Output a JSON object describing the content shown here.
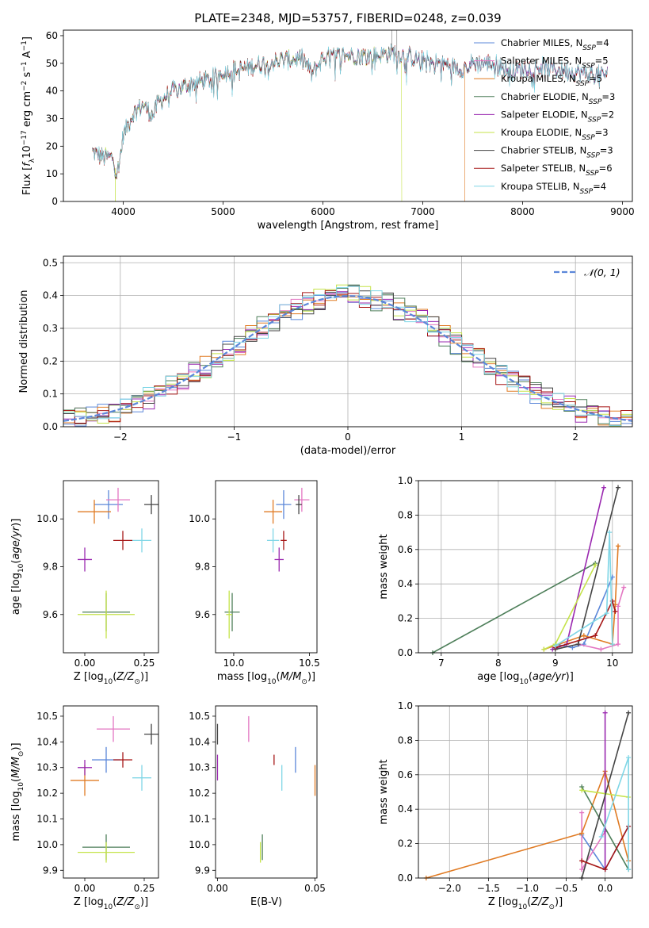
{
  "title": "PLATE=2348, MJD=53757, FIBERID=0248, z=0.039",
  "colors": {
    "Chabrier MILES": "#5b87d9",
    "Salpeter MILES": "#e377c2",
    "Kroupa MILES": "#e07b24",
    "Chabrier ELODIE": "#4e7f5a",
    "Salpeter ELODIE": "#9a28b0",
    "Kroupa ELODIE": "#c5e34a",
    "Chabrier STELIB": "#444444",
    "Salpeter STELIB": "#a61616",
    "Kroupa STELIB": "#7fd6e6",
    "normal": "#5b87d9"
  },
  "models": [
    "Chabrier MILES",
    "Salpeter MILES",
    "Kroupa MILES",
    "Chabrier ELODIE",
    "Salpeter ELODIE",
    "Kroupa ELODIE",
    "Chabrier STELIB",
    "Salpeter STELIB",
    "Kroupa STELIB"
  ],
  "chart_data": [
    {
      "id": "spectrum",
      "type": "line",
      "title": "PLATE=2348, MJD=53757, FIBERID=0248, z=0.039",
      "xlabel": "wavelength [Angstrom, rest frame]",
      "ylabel_parts": [
        "Flux [",
        "f",
        "λ",
        "10",
        "−17",
        " erg cm",
        "−2",
        " s",
        "−1",
        " A",
        "−1",
        "]"
      ],
      "xlim": [
        3400,
        9100
      ],
      "ylim": [
        0,
        62
      ],
      "xticks": [
        4000,
        5000,
        6000,
        7000,
        8000,
        9000
      ],
      "yticks": [
        0,
        10,
        20,
        30,
        40,
        50,
        60
      ],
      "legend": [
        {
          "name": "Chabrier MILES",
          "nssp": "4"
        },
        {
          "name": "Salpeter MILES",
          "nssp": "5"
        },
        {
          "name": "Kroupa MILES",
          "nssp": "5"
        },
        {
          "name": "Chabrier ELODIE",
          "nssp": "3"
        },
        {
          "name": "Salpeter ELODIE",
          "nssp": "2"
        },
        {
          "name": "Kroupa ELODIE",
          "nssp": "3"
        },
        {
          "name": "Chabrier STELIB",
          "nssp": "3"
        },
        {
          "name": "Salpeter STELIB",
          "nssp": "6"
        },
        {
          "name": "Kroupa STELIB",
          "nssp": "4"
        }
      ],
      "legend_label_prefix": "N",
      "legend_label_sub": "SSP",
      "legend_placement": "top-right",
      "continuum": [
        [
          3690,
          18
        ],
        [
          3800,
          16
        ],
        [
          3900,
          16
        ],
        [
          3930,
          10
        ],
        [
          3960,
          14
        ],
        [
          4000,
          24
        ],
        [
          4100,
          32
        ],
        [
          4200,
          35
        ],
        [
          4300,
          31
        ],
        [
          4350,
          36
        ],
        [
          4500,
          40
        ],
        [
          4700,
          43
        ],
        [
          4860,
          44
        ],
        [
          5000,
          47
        ],
        [
          5200,
          48
        ],
        [
          5400,
          50
        ],
        [
          5600,
          51
        ],
        [
          5800,
          52
        ],
        [
          5890,
          46
        ],
        [
          6000,
          52
        ],
        [
          6200,
          53
        ],
        [
          6400,
          53
        ],
        [
          6563,
          53
        ],
        [
          6700,
          54
        ],
        [
          6900,
          52
        ],
        [
          7000,
          51
        ],
        [
          7200,
          50
        ],
        [
          7400,
          48
        ],
        [
          7500,
          50
        ],
        [
          7700,
          50
        ],
        [
          7900,
          47
        ],
        [
          8100,
          49
        ],
        [
          8300,
          48
        ],
        [
          8500,
          47
        ],
        [
          8700,
          46
        ],
        [
          8850,
          46
        ]
      ],
      "lines": [
        {
          "model": "Kroupa ELODIE",
          "drop_at": 6790
        },
        {
          "model": "Kroupa MILES",
          "drop_at": 7420
        },
        {
          "model": "Kroupa ELODIE",
          "drop_at": 3920,
          "side": "start"
        }
      ]
    },
    {
      "id": "residuals",
      "type": "histogram",
      "xlabel": "(data-model)/error",
      "ylabel": "Normed distribution",
      "xlim": [
        -2.5,
        2.5
      ],
      "ylim": [
        0,
        0.52
      ],
      "xticks": [
        -2,
        -1,
        0,
        1,
        2
      ],
      "yticks": [
        0.0,
        0.1,
        0.2,
        0.3,
        0.4,
        0.5
      ],
      "grid": true,
      "legend": [
        "𝒩(0, 1)"
      ],
      "legend_placement": "top-right",
      "bin_width": 0.1
    },
    {
      "id": "age-vs-Z",
      "type": "scatter",
      "xlabel": "Z [log10(Z/Z⊙)]",
      "ylabel": "age [log10(age/yr)]",
      "xlim": [
        -0.09,
        0.31
      ],
      "ylim": [
        9.44,
        10.16
      ],
      "xticks": [
        0.0,
        0.25
      ],
      "yticks": [
        9.6,
        9.8,
        10.0
      ],
      "points": [
        {
          "model": "Chabrier MILES",
          "x": 0.1,
          "y": 10.06,
          "xerr": 0.06,
          "yerr": 0.06
        },
        {
          "model": "Salpeter MILES",
          "x": 0.14,
          "y": 10.08,
          "xerr": 0.05,
          "yerr": 0.05
        },
        {
          "model": "Kroupa MILES",
          "x": 0.04,
          "y": 10.03,
          "xerr": 0.07,
          "yerr": 0.05
        },
        {
          "model": "Chabrier ELODIE",
          "x": 0.09,
          "y": 9.61,
          "xerr": 0.1,
          "yerr": 0.08
        },
        {
          "model": "Salpeter ELODIE",
          "x": 0.0,
          "y": 9.83,
          "xerr": 0.03,
          "yerr": 0.05
        },
        {
          "model": "Kroupa ELODIE",
          "x": 0.09,
          "y": 9.6,
          "xerr": 0.12,
          "yerr": 0.1
        },
        {
          "model": "Chabrier STELIB",
          "x": 0.28,
          "y": 10.06,
          "xerr": 0.03,
          "yerr": 0.04
        },
        {
          "model": "Salpeter STELIB",
          "x": 0.16,
          "y": 9.91,
          "xerr": 0.04,
          "yerr": 0.04
        },
        {
          "model": "Kroupa STELIB",
          "x": 0.24,
          "y": 9.91,
          "xerr": 0.04,
          "yerr": 0.05
        }
      ]
    },
    {
      "id": "age-vs-mass",
      "type": "scatter",
      "xlabel": "mass [log10(M/M⊙)]",
      "ylabel": "",
      "xlim": [
        9.88,
        10.55
      ],
      "ylim": [
        9.44,
        10.16
      ],
      "xticks": [
        10.0,
        10.5
      ],
      "yticks": [
        9.6,
        9.8,
        10.0
      ],
      "points": [
        {
          "model": "Chabrier MILES",
          "x": 10.33,
          "y": 10.06,
          "xerr": 0.05,
          "yerr": 0.06
        },
        {
          "model": "Salpeter MILES",
          "x": 10.45,
          "y": 10.08,
          "xerr": 0.05,
          "yerr": 0.05
        },
        {
          "model": "Kroupa MILES",
          "x": 10.26,
          "y": 10.03,
          "xerr": 0.06,
          "yerr": 0.05
        },
        {
          "model": "Chabrier ELODIE",
          "x": 9.99,
          "y": 9.61,
          "xerr": 0.05,
          "yerr": 0.08
        },
        {
          "model": "Salpeter ELODIE",
          "x": 10.3,
          "y": 9.83,
          "xerr": 0.03,
          "yerr": 0.05
        },
        {
          "model": "Kroupa ELODIE",
          "x": 9.97,
          "y": 9.6,
          "xerr": 0.02,
          "yerr": 0.1
        },
        {
          "model": "Chabrier STELIB",
          "x": 10.43,
          "y": 10.06,
          "xerr": 0.02,
          "yerr": 0.04
        },
        {
          "model": "Salpeter STELIB",
          "x": 10.33,
          "y": 9.91,
          "xerr": 0.02,
          "yerr": 0.04
        },
        {
          "model": "Kroupa STELIB",
          "x": 10.26,
          "y": 9.91,
          "xerr": 0.04,
          "yerr": 0.05
        }
      ]
    },
    {
      "id": "massweight-vs-age",
      "type": "line",
      "xlabel": "age [log10(age/yr)]",
      "ylabel": "mass weight",
      "xlim": [
        6.6,
        10.35
      ],
      "ylim": [
        0,
        1.0
      ],
      "xticks": [
        7,
        8,
        9,
        10
      ],
      "yticks": [
        0.0,
        0.2,
        0.4,
        0.6,
        0.8,
        1.0
      ],
      "grid": true,
      "series": [
        {
          "model": "Chabrier MILES",
          "points": [
            [
              9.0,
              0.05
            ],
            [
              9.3,
              0.03
            ],
            [
              9.5,
              0.05
            ],
            [
              10.0,
              0.44
            ]
          ]
        },
        {
          "model": "Salpeter MILES",
          "points": [
            [
              9.4,
              0.05
            ],
            [
              9.8,
              0.02
            ],
            [
              10.1,
              0.05
            ],
            [
              10.1,
              0.27
            ],
            [
              10.2,
              0.38
            ]
          ]
        },
        {
          "model": "Kroupa MILES",
          "points": [
            [
              8.8,
              0.02
            ],
            [
              9.5,
              0.1
            ],
            [
              10.0,
              0.05
            ],
            [
              10.05,
              0.28
            ],
            [
              10.1,
              0.62
            ]
          ]
        },
        {
          "model": "Chabrier ELODIE",
          "points": [
            [
              6.85,
              0.0
            ],
            [
              9.7,
              0.52
            ]
          ]
        },
        {
          "model": "Salpeter ELODIE",
          "points": [
            [
              8.95,
              0.02
            ],
            [
              9.2,
              0.05
            ],
            [
              9.85,
              0.96
            ]
          ]
        },
        {
          "model": "Kroupa ELODIE",
          "points": [
            [
              8.8,
              0.02
            ],
            [
              9.0,
              0.05
            ],
            [
              9.7,
              0.51
            ]
          ]
        },
        {
          "model": "Chabrier STELIB",
          "points": [
            [
              9.0,
              0.02
            ],
            [
              9.4,
              0.05
            ],
            [
              10.1,
              0.96
            ]
          ]
        },
        {
          "model": "Salpeter STELIB",
          "points": [
            [
              9.0,
              0.03
            ],
            [
              9.7,
              0.1
            ],
            [
              10.0,
              0.3
            ],
            [
              10.05,
              0.24
            ]
          ]
        },
        {
          "model": "Kroupa STELIB",
          "points": [
            [
              9.0,
              0.04
            ],
            [
              9.9,
              0.23
            ],
            [
              9.95,
              0.7
            ],
            [
              10.0,
              0.05
            ]
          ]
        }
      ]
    },
    {
      "id": "mass-vs-Z",
      "type": "scatter",
      "xlabel": "Z [log10(Z/Z⊙)]",
      "ylabel": "mass [log10(M/M⊙)]",
      "xlim": [
        -0.09,
        0.31
      ],
      "ylim": [
        9.87,
        10.54
      ],
      "xticks": [
        0.0,
        0.25
      ],
      "yticks": [
        9.9,
        10.0,
        10.1,
        10.2,
        10.3,
        10.4,
        10.5
      ],
      "points": [
        {
          "model": "Chabrier MILES",
          "x": 0.09,
          "y": 10.33,
          "xerr": 0.06,
          "yerr": 0.05
        },
        {
          "model": "Salpeter MILES",
          "x": 0.12,
          "y": 10.45,
          "xerr": 0.07,
          "yerr": 0.05
        },
        {
          "model": "Kroupa MILES",
          "x": 0.0,
          "y": 10.25,
          "xerr": 0.06,
          "yerr": 0.06
        },
        {
          "model": "Chabrier ELODIE",
          "x": 0.09,
          "y": 9.99,
          "xerr": 0.1,
          "yerr": 0.05
        },
        {
          "model": "Salpeter ELODIE",
          "x": 0.0,
          "y": 10.3,
          "xerr": 0.03,
          "yerr": 0.03
        },
        {
          "model": "Kroupa ELODIE",
          "x": 0.09,
          "y": 9.97,
          "xerr": 0.12,
          "yerr": 0.04
        },
        {
          "model": "Chabrier STELIB",
          "x": 0.28,
          "y": 10.43,
          "xerr": 0.03,
          "yerr": 0.04
        },
        {
          "model": "Salpeter STELIB",
          "x": 0.16,
          "y": 10.33,
          "xerr": 0.04,
          "yerr": 0.03
        },
        {
          "model": "Kroupa STELIB",
          "x": 0.24,
          "y": 10.26,
          "xerr": 0.04,
          "yerr": 0.05
        }
      ]
    },
    {
      "id": "mass-vs-EBV",
      "type": "scatter",
      "xlabel": "E(B-V)",
      "ylabel": "",
      "xlim": [
        -0.001,
        0.051
      ],
      "ylim": [
        9.87,
        10.54
      ],
      "xticks": [
        0.0,
        0.05
      ],
      "yticks": [
        9.9,
        10.0,
        10.1,
        10.2,
        10.3,
        10.4,
        10.5
      ],
      "points": [
        {
          "model": "Chabrier MILES",
          "x": 0.04,
          "y": 10.33,
          "xerr": 0,
          "yerr": 0.05
        },
        {
          "model": "Salpeter MILES",
          "x": 0.016,
          "y": 10.45,
          "xerr": 0,
          "yerr": 0.05
        },
        {
          "model": "Kroupa MILES",
          "x": 0.05,
          "y": 10.25,
          "xerr": 0,
          "yerr": 0.06
        },
        {
          "model": "Chabrier ELODIE",
          "x": 0.023,
          "y": 9.99,
          "xerr": 0,
          "yerr": 0.05
        },
        {
          "model": "Salpeter ELODIE",
          "x": 0.0,
          "y": 10.3,
          "xerr": 0,
          "yerr": 0.05
        },
        {
          "model": "Kroupa ELODIE",
          "x": 0.022,
          "y": 9.97,
          "xerr": 0,
          "yerr": 0.04
        },
        {
          "model": "Chabrier STELIB",
          "x": 0.0,
          "y": 10.43,
          "xerr": 0,
          "yerr": 0.04
        },
        {
          "model": "Salpeter STELIB",
          "x": 0.029,
          "y": 10.33,
          "xerr": 0,
          "yerr": 0.02
        },
        {
          "model": "Kroupa STELIB",
          "x": 0.033,
          "y": 10.26,
          "xerr": 0,
          "yerr": 0.05
        }
      ]
    },
    {
      "id": "massweight-vs-Z",
      "type": "line",
      "xlabel": "Z [log10(Z/Z⊙)]",
      "ylabel": "mass weight",
      "xlim": [
        -2.4,
        0.35
      ],
      "ylim": [
        0,
        1.0
      ],
      "xticks": [
        -2.0,
        -1.5,
        -1.0,
        -0.5,
        0.0
      ],
      "yticks": [
        0.0,
        0.2,
        0.4,
        0.6,
        0.8,
        1.0
      ],
      "grid": true,
      "series": [
        {
          "model": "Chabrier MILES",
          "points": [
            [
              -0.3,
              0.25
            ],
            [
              0.0,
              0.05
            ],
            [
              0.3,
              0.3
            ]
          ]
        },
        {
          "model": "Salpeter MILES",
          "points": [
            [
              -0.3,
              0.38
            ],
            [
              -0.3,
              0.05
            ],
            [
              0.0,
              0.27
            ]
          ]
        },
        {
          "model": "Kroupa MILES",
          "points": [
            [
              -2.3,
              0.0
            ],
            [
              -0.3,
              0.26
            ],
            [
              0.0,
              0.62
            ],
            [
              0.3,
              0.1
            ]
          ]
        },
        {
          "model": "Chabrier ELODIE",
          "points": [
            [
              -0.3,
              0.53
            ],
            [
              0.3,
              0.05
            ]
          ]
        },
        {
          "model": "Salpeter ELODIE",
          "points": [
            [
              0.0,
              0.96
            ],
            [
              0.0,
              0.05
            ]
          ]
        },
        {
          "model": "Kroupa ELODIE",
          "points": [
            [
              -0.3,
              0.51
            ],
            [
              0.3,
              0.47
            ]
          ]
        },
        {
          "model": "Chabrier STELIB",
          "points": [
            [
              -0.3,
              0.0
            ],
            [
              0.3,
              0.96
            ]
          ]
        },
        {
          "model": "Salpeter STELIB",
          "points": [
            [
              -0.3,
              0.1
            ],
            [
              0.0,
              0.05
            ],
            [
              0.3,
              0.3
            ]
          ]
        },
        {
          "model": "Kroupa STELIB",
          "points": [
            [
              -0.05,
              0.24
            ],
            [
              0.3,
              0.7
            ],
            [
              0.3,
              0.05
            ]
          ]
        }
      ]
    }
  ]
}
